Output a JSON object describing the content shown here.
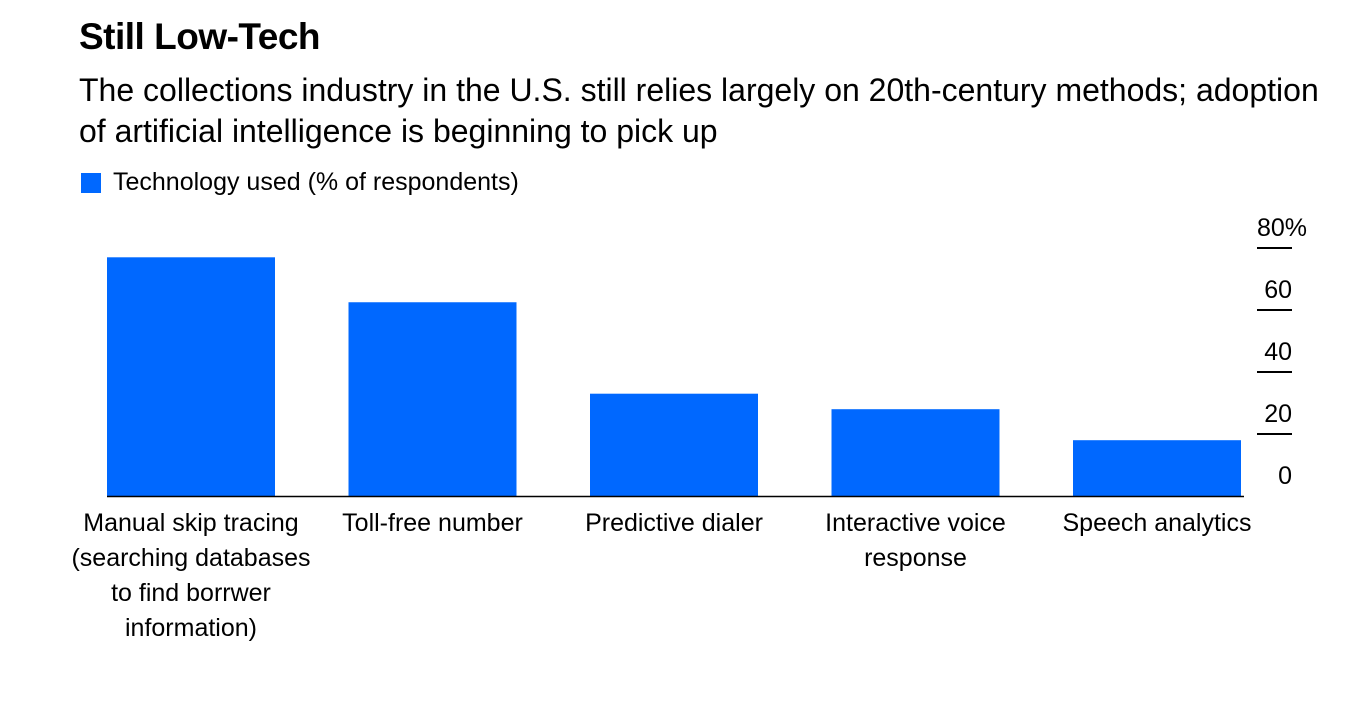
{
  "header": {
    "title": "Still Low-Tech",
    "subtitle": "The collections industry in the U.S. still relies largely on 20th-century methods; adoption of artificial intelligence is beginning to pick up"
  },
  "legend": {
    "label": "Technology used (% of respondents)",
    "color": "#0068ff"
  },
  "chart_data": {
    "type": "bar",
    "categories": [
      "Manual skip tracing (searching databases to find borrwer information)",
      "Toll-free number",
      "Predictive dialer",
      "Interactive voice response",
      "Speech analytics"
    ],
    "series": [
      {
        "name": "Technology used (% of respondents)",
        "values": [
          77,
          62.5,
          33,
          28,
          18
        ]
      }
    ],
    "ylim": [
      0,
      80
    ],
    "y_ticks": [
      "0",
      "20",
      "40",
      "60",
      "80%"
    ],
    "grid": false,
    "y_axis_position": "right",
    "legend_position": "top-left",
    "bar_color": "#0068ff"
  }
}
